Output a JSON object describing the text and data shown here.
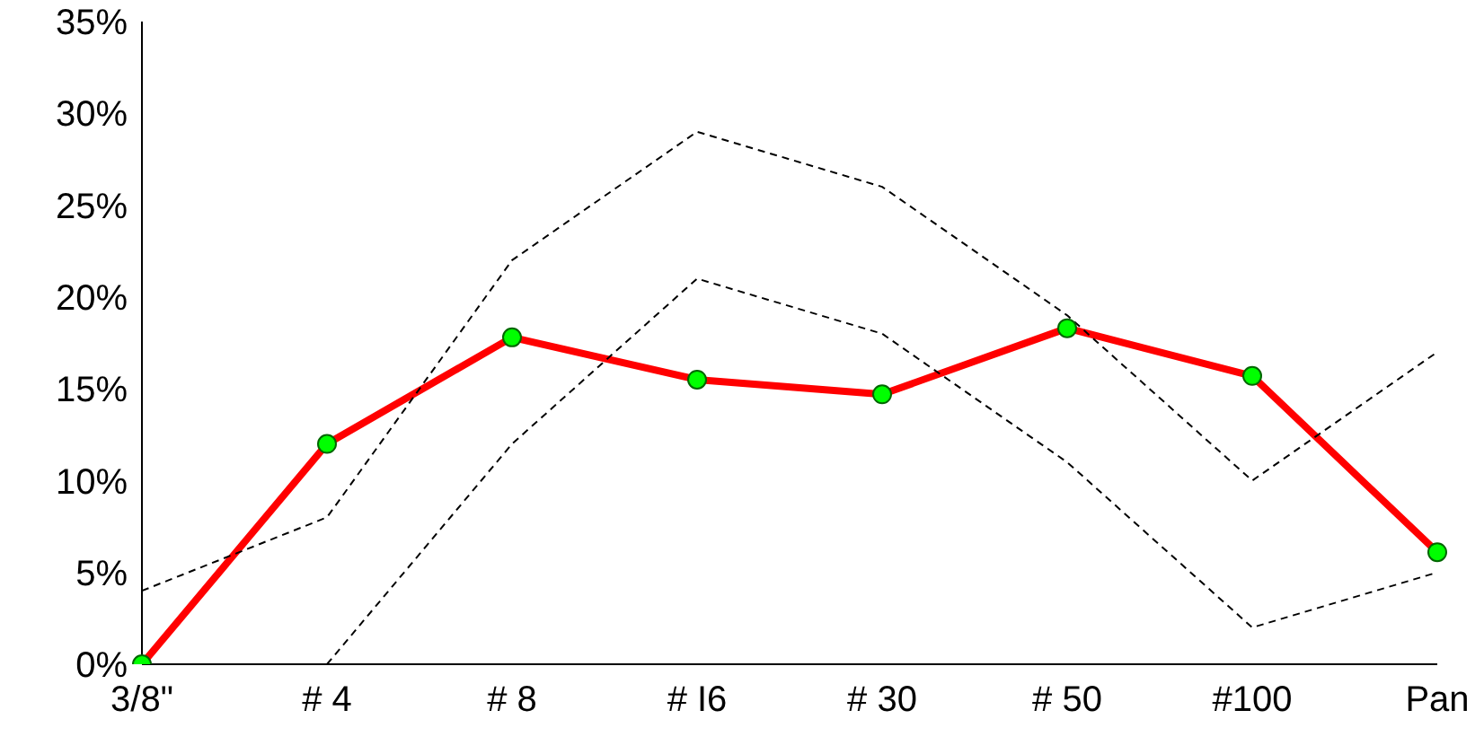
{
  "chart_data": {
    "type": "line",
    "categories": [
      "3/8\"",
      "# 4",
      "# 8",
      "# I6",
      "# 30",
      "# 50",
      "#100",
      "Pan"
    ],
    "series": [
      {
        "color": "#ff0000",
        "values": [
          0,
          12,
          17.8,
          15.5,
          14.7,
          18.3,
          15.7,
          6.1
        ],
        "marker": "circle",
        "line_style": "solid"
      },
      {
        "color": "#000000",
        "values": [
          4,
          8,
          22,
          29,
          26,
          19,
          10,
          17
        ],
        "marker": "none",
        "line_style": "dashed"
      },
      {
        "color": "#000000",
        "values": [
          null,
          0,
          12,
          21,
          18,
          11,
          2,
          5
        ],
        "marker": "none",
        "line_style": "dashed"
      }
    ],
    "ylim": [
      0,
      35
    ],
    "yticks": [
      {
        "value": 0,
        "label": "0%"
      },
      {
        "value": 5,
        "label": "5%"
      },
      {
        "value": 10,
        "label": "10%"
      },
      {
        "value": 15,
        "label": "15%"
      },
      {
        "value": 20,
        "label": "20%"
      },
      {
        "value": 25,
        "label": "25%"
      },
      {
        "value": 30,
        "label": "30%"
      },
      {
        "value": 35,
        "label": "35%"
      }
    ],
    "grid": false,
    "legend": false
  }
}
